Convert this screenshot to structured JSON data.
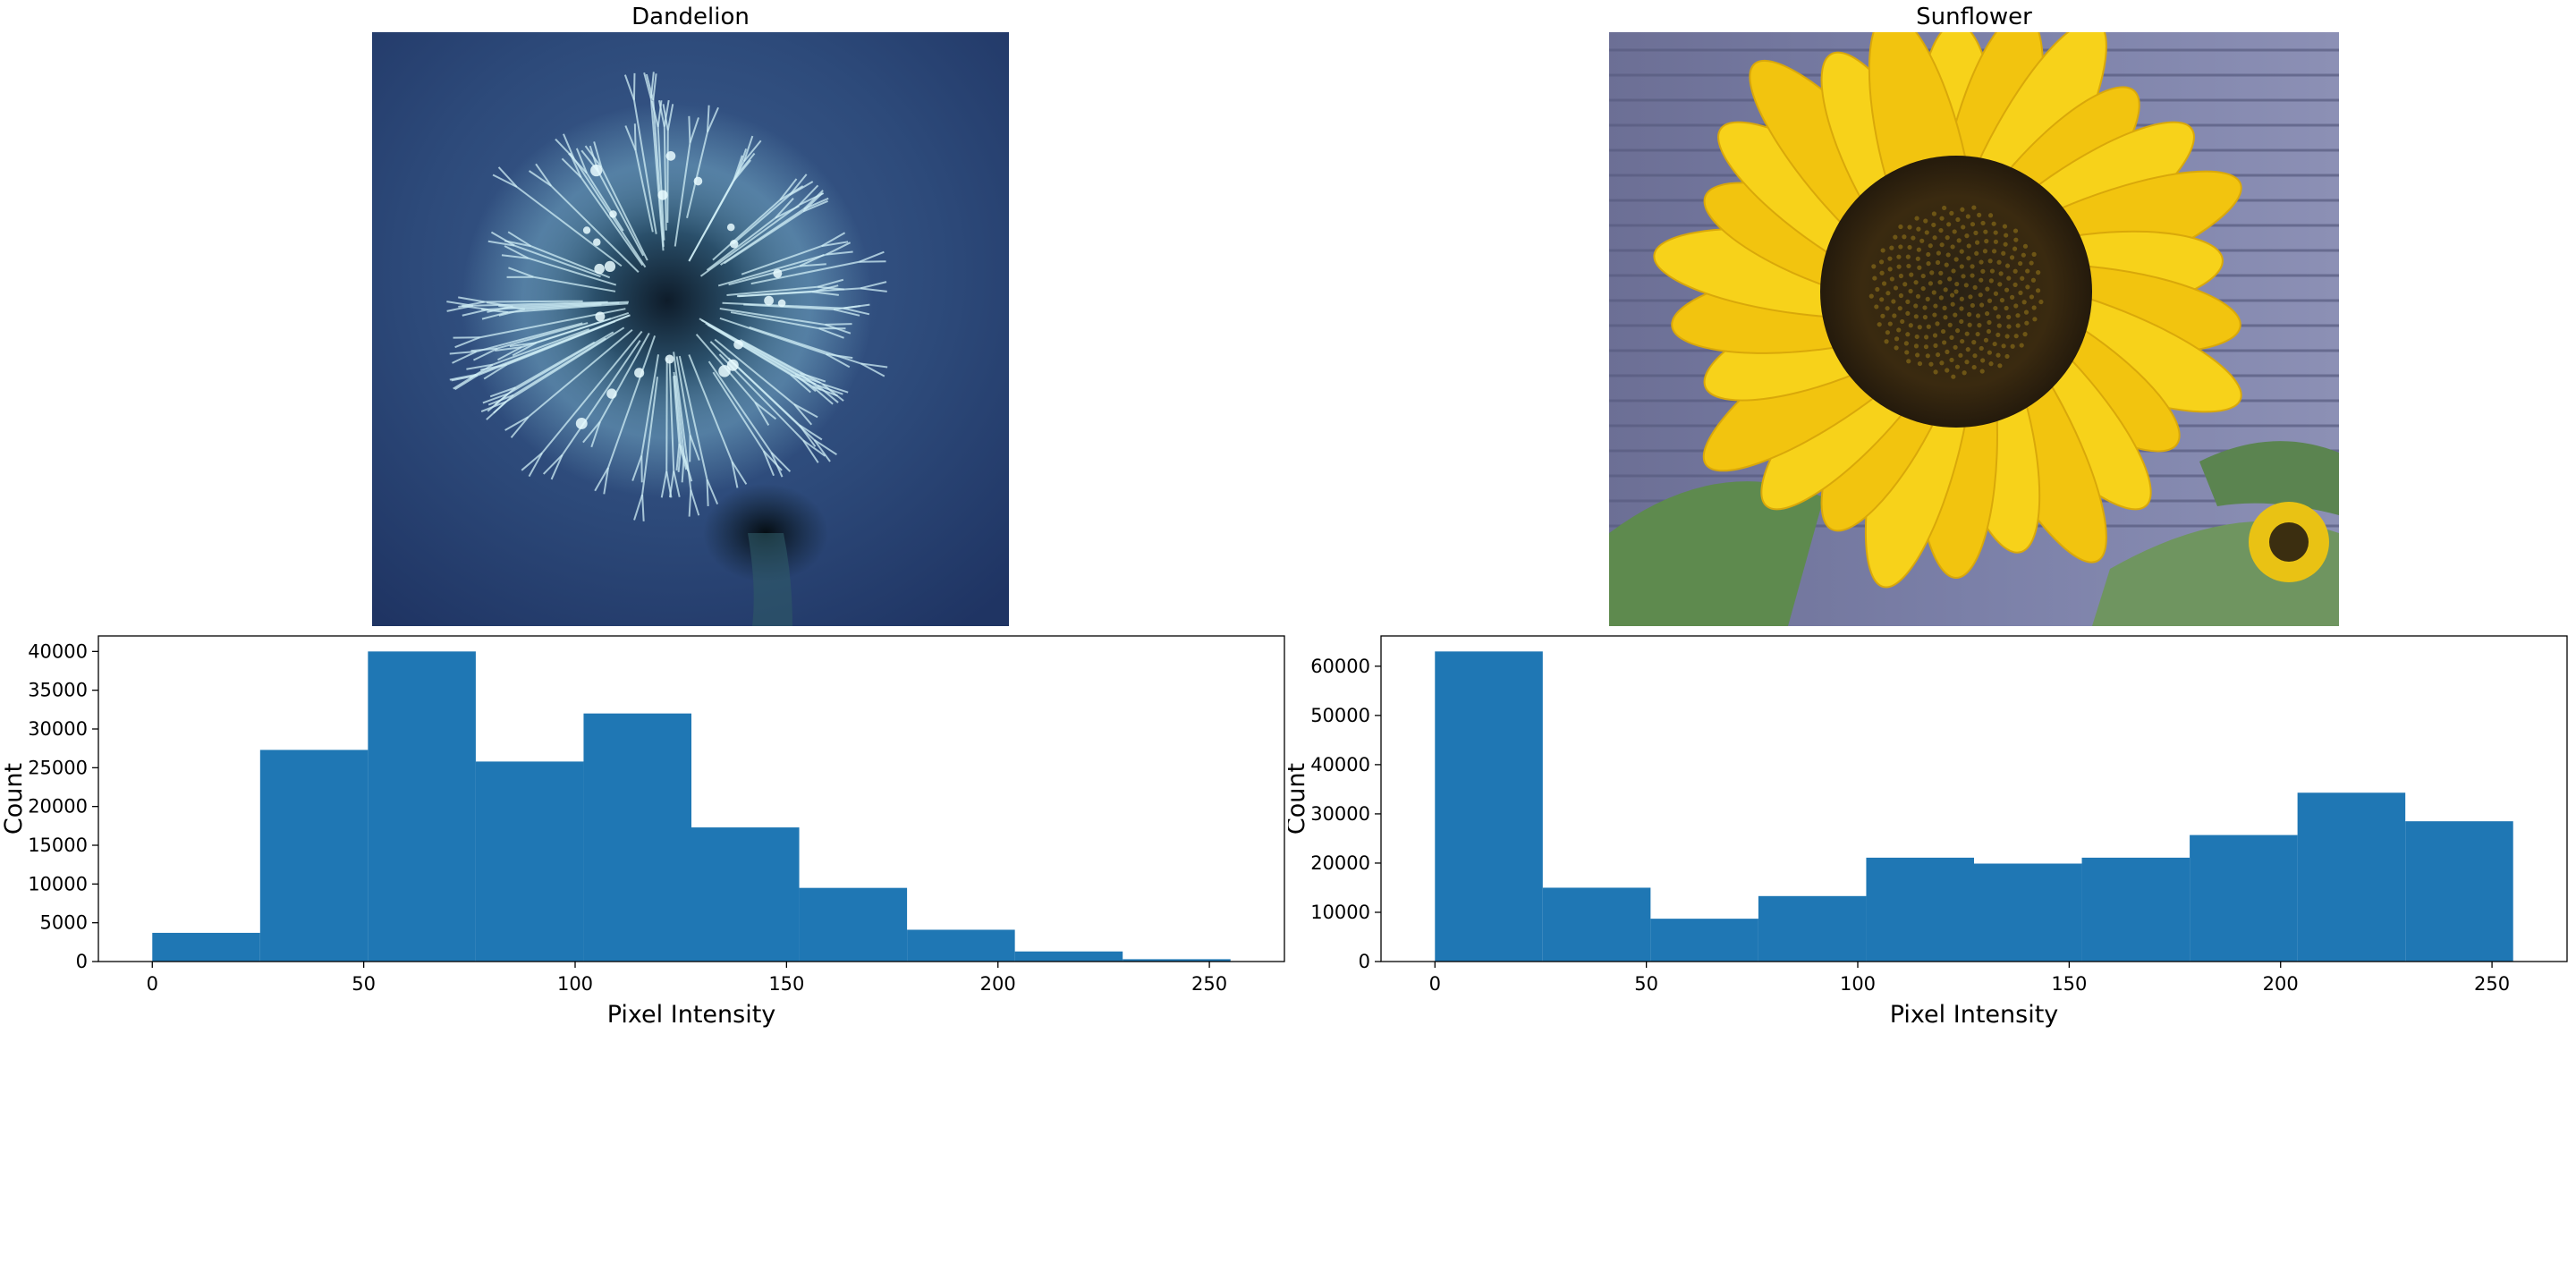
{
  "images": [
    {
      "title": "Dandelion"
    },
    {
      "title": "Sunflower"
    }
  ],
  "colors": {
    "bar": "#1f77b4"
  },
  "chart_data": [
    {
      "type": "bar",
      "title": "",
      "xlabel": "Pixel Intensity",
      "ylabel": "Count",
      "bin_edges": [
        0,
        25.5,
        51,
        76.5,
        102,
        127.5,
        153,
        178.5,
        204,
        229.5,
        255
      ],
      "values": [
        3700,
        27300,
        40000,
        25800,
        32000,
        17300,
        9500,
        4100,
        1300,
        300
      ],
      "xlim": [
        -12.75,
        267.75
      ],
      "ylim": [
        0,
        42000
      ],
      "xticks": [
        0,
        50,
        100,
        150,
        200,
        250
      ],
      "xtick_labels": [
        "0",
        "50",
        "100",
        "150",
        "200",
        "250"
      ],
      "yticks": [
        0,
        5000,
        10000,
        15000,
        20000,
        25000,
        30000,
        35000,
        40000
      ],
      "ytick_labels": [
        "0",
        "5000",
        "10000",
        "15000",
        "20000",
        "25000",
        "30000",
        "35000",
        "40000"
      ],
      "grid": false
    },
    {
      "type": "bar",
      "title": "",
      "xlabel": "Pixel Intensity",
      "ylabel": "Count",
      "bin_edges": [
        0,
        25.5,
        51,
        76.5,
        102,
        127.5,
        153,
        178.5,
        204,
        229.5,
        255
      ],
      "values": [
        63000,
        15000,
        8700,
        13300,
        21100,
        19900,
        21100,
        25700,
        34300,
        28500
      ],
      "xlim": [
        -12.75,
        267.75
      ],
      "ylim": [
        0,
        66150
      ],
      "xticks": [
        0,
        50,
        100,
        150,
        200,
        250
      ],
      "xtick_labels": [
        "0",
        "50",
        "100",
        "150",
        "200",
        "250"
      ],
      "yticks": [
        0,
        10000,
        20000,
        30000,
        40000,
        50000,
        60000
      ],
      "ytick_labels": [
        "0",
        "10000",
        "20000",
        "30000",
        "40000",
        "50000",
        "60000"
      ],
      "grid": false
    }
  ]
}
